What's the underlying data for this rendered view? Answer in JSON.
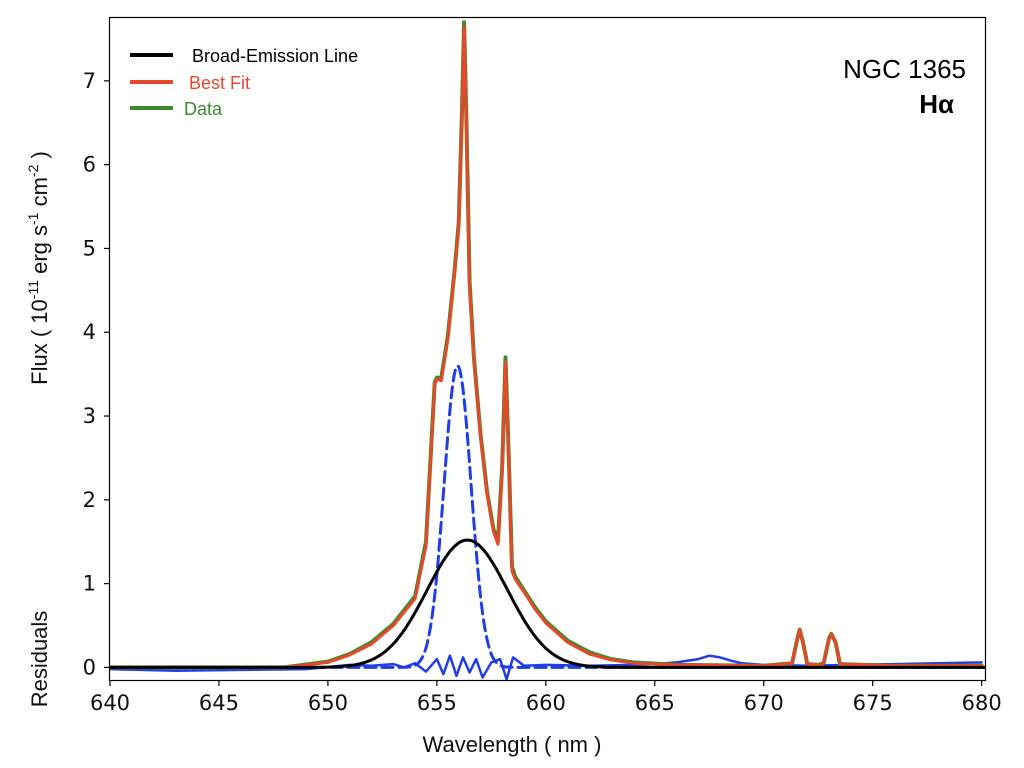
{
  "chart_data": {
    "type": "line",
    "title": "",
    "xlabel": "Wavelength ( nm )",
    "ylabel": "Flux ( 10-11 erg s-1 cm-2 )",
    "ylabel_parts": {
      "base": "Flux ( 10",
      "exp1": "-11",
      "mid1": " erg s",
      "exp2": "-1",
      "mid2": " cm",
      "exp3": "-2",
      "end": " )"
    },
    "ylabel2": "Residuals",
    "xlim": [
      640,
      680.2
    ],
    "ylim": [
      -0.15,
      7.75
    ],
    "xticks": [
      640,
      645,
      650,
      655,
      660,
      665,
      670,
      675,
      680
    ],
    "yticks": [
      0,
      1,
      2,
      3,
      4,
      5,
      6,
      7
    ],
    "grid": false,
    "legend_position": "top-left",
    "legend": [
      {
        "label": "Broad-Emission Line",
        "color": "#000000"
      },
      {
        "label": "Best Fit",
        "color": "#e8472a"
      },
      {
        "label": "Data",
        "color": "#3a8c2a"
      }
    ],
    "annotations": {
      "object": "NGC 1365",
      "line": "Hα"
    },
    "series": [
      {
        "name": "Data",
        "color": "#3a8c2a",
        "style": "solid",
        "width": 4,
        "x": [
          640,
          648,
          650,
          651,
          652,
          653,
          654,
          654.5,
          654.9,
          655.0,
          655.2,
          655.5,
          655.8,
          656.0,
          656.15,
          656.25,
          656.35,
          656.5,
          656.7,
          657.0,
          657.3,
          657.6,
          657.8,
          658.0,
          658.15,
          658.3,
          658.45,
          658.6,
          659.0,
          659.5,
          660,
          661,
          662,
          663,
          664,
          666,
          670,
          671.3,
          671.55,
          671.65,
          671.8,
          672.0,
          672.5,
          672.75,
          673.0,
          673.1,
          673.3,
          673.5,
          676,
          680
        ],
        "y": [
          0.0,
          0.0,
          0.07,
          0.16,
          0.3,
          0.52,
          0.85,
          1.5,
          3.4,
          3.46,
          3.45,
          3.95,
          4.7,
          5.3,
          6.6,
          7.7,
          6.6,
          4.6,
          3.7,
          2.8,
          2.1,
          1.65,
          1.5,
          2.4,
          3.7,
          2.5,
          1.2,
          1.08,
          0.92,
          0.72,
          0.55,
          0.32,
          0.18,
          0.1,
          0.06,
          0.03,
          0.02,
          0.05,
          0.35,
          0.45,
          0.3,
          0.04,
          0.03,
          0.05,
          0.35,
          0.4,
          0.3,
          0.04,
          0.02,
          0.02
        ]
      },
      {
        "name": "Best Fit",
        "color": "#e8472a",
        "style": "solid",
        "width": 3,
        "x": [
          640,
          648,
          650,
          651,
          652,
          653,
          654,
          654.5,
          654.9,
          655.0,
          655.2,
          655.5,
          655.8,
          656.0,
          656.15,
          656.25,
          656.35,
          656.5,
          656.7,
          657.0,
          657.3,
          657.6,
          657.8,
          658.0,
          658.15,
          658.3,
          658.45,
          658.6,
          659.0,
          659.5,
          660,
          661,
          662,
          663,
          664,
          666,
          670,
          671.3,
          671.55,
          671.65,
          671.8,
          672.0,
          672.5,
          672.75,
          673.0,
          673.1,
          673.3,
          673.5,
          676,
          680
        ],
        "y": [
          0.0,
          0.0,
          0.06,
          0.15,
          0.28,
          0.5,
          0.82,
          1.45,
          3.38,
          3.44,
          3.42,
          3.92,
          4.68,
          5.25,
          6.55,
          7.65,
          6.55,
          4.55,
          3.68,
          2.78,
          2.08,
          1.62,
          1.47,
          2.35,
          3.65,
          2.45,
          1.15,
          1.05,
          0.9,
          0.7,
          0.53,
          0.3,
          0.16,
          0.09,
          0.05,
          0.03,
          0.02,
          0.05,
          0.35,
          0.45,
          0.3,
          0.04,
          0.03,
          0.05,
          0.35,
          0.4,
          0.3,
          0.04,
          0.02,
          0.02
        ]
      },
      {
        "name": "Broad-Emission Line",
        "color": "#000000",
        "style": "solid",
        "width": 3,
        "gaussian": {
          "amplitude": 1.52,
          "center": 656.4,
          "sigma": 1.85
        }
      },
      {
        "name": "Narrow component",
        "color": "#1f3de8",
        "style": "dashed",
        "width": 3,
        "gaussian": {
          "amplitude": 3.6,
          "center": 655.95,
          "sigma": 0.62
        }
      },
      {
        "name": "Residuals",
        "color": "#1f3de8",
        "style": "solid",
        "width": 2.5,
        "x": [
          640,
          643,
          646,
          649,
          651,
          652,
          653,
          653.5,
          654,
          654.5,
          655,
          655.3,
          655.6,
          655.9,
          656.2,
          656.5,
          656.8,
          657.1,
          657.5,
          657.9,
          658.2,
          658.5,
          659,
          660,
          662,
          664,
          665,
          666,
          667,
          667.5,
          668,
          668.5,
          669,
          670,
          672,
          674,
          676,
          678,
          680
        ],
        "y": [
          -0.02,
          -0.04,
          -0.03,
          -0.02,
          0.03,
          0.02,
          0.04,
          0.0,
          0.05,
          -0.05,
          0.1,
          -0.08,
          0.14,
          -0.1,
          0.12,
          -0.06,
          0.1,
          -0.12,
          0.06,
          0.1,
          -0.14,
          0.12,
          0.02,
          0.03,
          0.02,
          0.03,
          0.04,
          0.06,
          0.1,
          0.14,
          0.12,
          0.08,
          0.05,
          0.03,
          0.02,
          0.03,
          0.04,
          0.05,
          0.06
        ]
      }
    ]
  }
}
